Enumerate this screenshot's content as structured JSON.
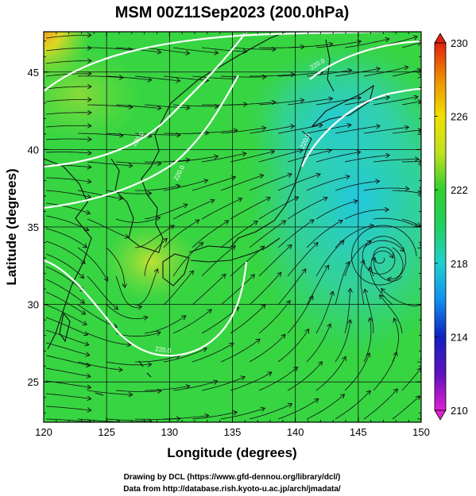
{
  "title": "MSM 00Z11Sep2023 (200.0hPa)",
  "x_axis": {
    "label": "Longitude (degrees)",
    "range": [
      120,
      150
    ],
    "ticks": [
      "120",
      "125",
      "130",
      "135",
      "140",
      "145",
      "150"
    ]
  },
  "y_axis": {
    "label": "Latitude  (degrees)",
    "range": [
      22.4,
      47.6
    ],
    "ticks": [
      "25",
      "30",
      "35",
      "40",
      "45"
    ]
  },
  "colorbar": {
    "range": [
      210,
      230
    ],
    "ticks": [
      "210",
      "214",
      "218",
      "222",
      "226",
      "230"
    ],
    "colors": [
      "#e020d0",
      "#6010c0",
      "#1020c0",
      "#1090f0",
      "#20d0d0",
      "#20d060",
      "#30d030",
      "#c0e020",
      "#f0e000",
      "#f09000",
      "#e02010"
    ]
  },
  "contour_labels": [
    "220.0",
    "220.0",
    "220.0",
    "220.0",
    "220.0"
  ],
  "credits": {
    "line1": "Drawing by DCL (https://www.gfd-dennou.org/library/dcl/)",
    "line2": "Data from http://database.rish.kyoto-u.ac.jp/arch/jmadata/"
  }
}
